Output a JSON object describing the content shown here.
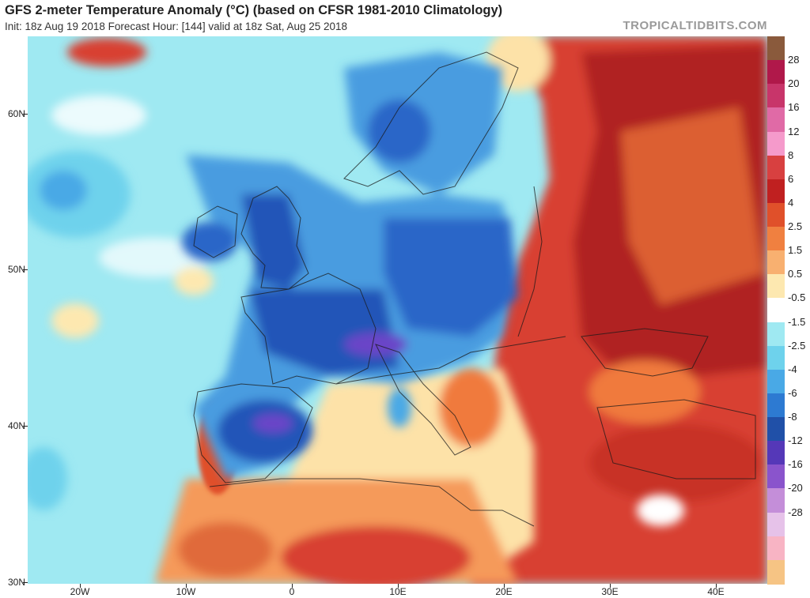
{
  "header": {
    "title": "GFS 2-meter Temperature Anomaly (°C) (based on CFSR 1981-2010 Climatology)",
    "subtitle": "Init: 18z Aug 19 2018   Forecast Hour: [144]   valid at 18z Sat, Aug 25 2018",
    "brand": "TROPICALTIDBITS.COM"
  },
  "map": {
    "lat_labels": [
      "60N",
      "50N",
      "40N",
      "30N"
    ],
    "lon_labels": [
      "20W",
      "10W",
      "0",
      "10E",
      "20E",
      "30E",
      "40E"
    ]
  },
  "colorbar": {
    "labels": [
      "28",
      "20",
      "16",
      "12",
      "8",
      "6",
      "4",
      "2.5",
      "1.5",
      "0.5",
      "-0.5",
      "-1.5",
      "-2.5",
      "-4",
      "-6",
      "-8",
      "-12",
      "-16",
      "-20",
      "-28"
    ],
    "colors": [
      "#8a5a3c",
      "#b0184a",
      "#c8356a",
      "#e06aa6",
      "#f59acb",
      "#d84040",
      "#c02020",
      "#e0502a",
      "#f08040",
      "#f8b070",
      "#fde8b0",
      "#ffffff",
      "#9fe9f2",
      "#6ed2ec",
      "#49a9e6",
      "#2d7ad2",
      "#2050a8",
      "#5538b8",
      "#8a54cc",
      "#c48ed9",
      "#e6c2e9",
      "#f8b4c4",
      "#f6c484"
    ]
  },
  "colors": {
    "warm_dark": "#9e1616",
    "warm_mid": "#d93a2a",
    "warm_light": "#f07a3c",
    "warm_pale": "#fde2a8",
    "cool_pale": "#9fe9f2",
    "cool_mid": "#4a9ce0",
    "cool_dark": "#2355b8",
    "cool_deep": "#6b44c8"
  }
}
